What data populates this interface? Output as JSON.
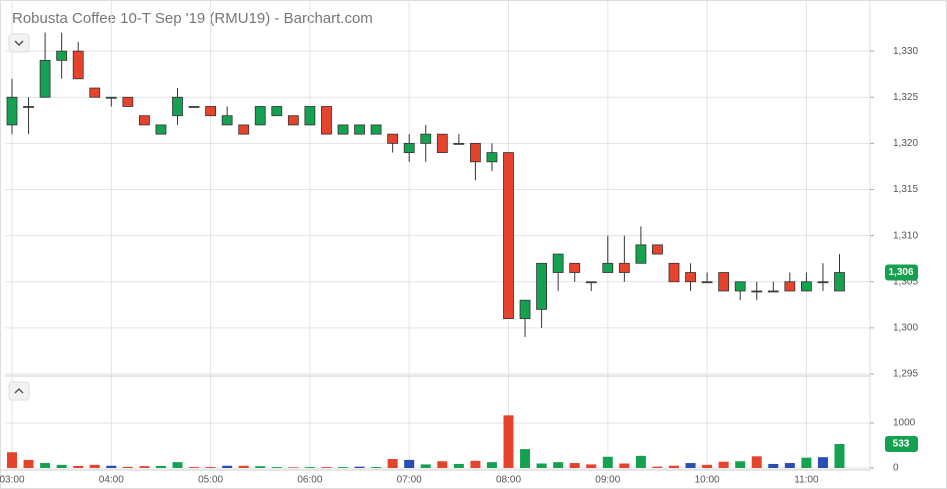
{
  "chart_data": [
    {
      "type": "candlestick",
      "title": "Robusta Coffee 10-T Sep '19 (RMU19) - Barchart.com",
      "open": [
        1322,
        1324,
        1325,
        1329,
        1330,
        1326,
        1325,
        1325,
        1323,
        1321,
        1323,
        1324,
        1324,
        1322,
        1322,
        1322,
        1323,
        1323,
        1322,
        1324,
        1321,
        1321,
        1321,
        1321,
        1319,
        1320,
        1321,
        1320,
        1320,
        1318,
        1319,
        1301,
        1302,
        1306,
        1307,
        1305,
        1306,
        1307,
        1307,
        1309,
        1307,
        1306,
        1305,
        1306,
        1304,
        1304,
        1304,
        1305,
        1304,
        1305,
        1304
      ],
      "high": [
        1327,
        1325,
        1332,
        1332,
        1331,
        1326,
        1325,
        1325,
        1323,
        1322,
        1326,
        1324,
        1324,
        1324,
        1322,
        1324,
        1324,
        1323,
        1324,
        1324,
        1322,
        1322,
        1322,
        1321,
        1321,
        1322,
        1321,
        1321,
        1320,
        1320,
        1319,
        1303,
        1307,
        1308,
        1307,
        1305,
        1310,
        1310,
        1311,
        1309,
        1307,
        1307,
        1306,
        1306,
        1305,
        1305,
        1305,
        1306,
        1306,
        1307,
        1308
      ],
      "low": [
        1321,
        1321,
        1325,
        1327,
        1327,
        1325,
        1324,
        1324,
        1322,
        1321,
        1322,
        1324,
        1323,
        1322,
        1321,
        1322,
        1323,
        1322,
        1322,
        1321,
        1321,
        1321,
        1321,
        1319,
        1318,
        1318,
        1319,
        1320,
        1316,
        1317,
        1301,
        1299,
        1300,
        1304,
        1305,
        1304,
        1306,
        1305,
        1307,
        1308,
        1305,
        1304,
        1305,
        1304,
        1303,
        1303,
        1304,
        1304,
        1304,
        1304,
        1304
      ],
      "close": [
        1325,
        1324,
        1329,
        1330,
        1327,
        1325,
        1325,
        1324,
        1322,
        1322,
        1325,
        1324,
        1323,
        1323,
        1321,
        1324,
        1324,
        1322,
        1324,
        1321,
        1322,
        1322,
        1322,
        1320,
        1320,
        1321,
        1319,
        1320,
        1318,
        1319,
        1301,
        1303,
        1307,
        1308,
        1306,
        1305,
        1307,
        1306,
        1309,
        1308,
        1305,
        1305,
        1305,
        1304,
        1305,
        1304,
        1304,
        1304,
        1305,
        1305,
        1306
      ],
      "up_color": "#16a150",
      "down_color": "#e5432b",
      "current": {
        "value": 1306,
        "label": "1,306"
      },
      "ylim": [
        1295,
        1335
      ],
      "yticks": [
        {
          "value": 1295,
          "label": "1,295"
        },
        {
          "value": 1300,
          "label": "1,300"
        },
        {
          "value": 1305,
          "label": "1,305"
        },
        {
          "value": 1310,
          "label": "1,310"
        },
        {
          "value": 1315,
          "label": "1,315"
        },
        {
          "value": 1320,
          "label": "1,320"
        },
        {
          "value": 1325,
          "label": "1,325"
        },
        {
          "value": 1330,
          "label": "1,330"
        }
      ],
      "grid": true
    },
    {
      "type": "bar",
      "categories": [
        "03:00",
        null,
        null,
        null,
        null,
        null,
        "04:00",
        null,
        null,
        null,
        null,
        null,
        "05:00",
        null,
        null,
        null,
        null,
        null,
        "06:00",
        null,
        null,
        null,
        null,
        null,
        "07:00",
        null,
        null,
        null,
        null,
        null,
        "08:00",
        null,
        null,
        null,
        null,
        null,
        "09:00",
        null,
        null,
        null,
        null,
        null,
        "10:00",
        null,
        null,
        null,
        null,
        null,
        "11:00",
        null,
        null
      ],
      "values": [
        350,
        180,
        110,
        70,
        45,
        70,
        50,
        25,
        40,
        45,
        130,
        20,
        20,
        50,
        50,
        40,
        20,
        15,
        20,
        20,
        20,
        30,
        20,
        200,
        180,
        80,
        150,
        90,
        160,
        130,
        1170,
        420,
        100,
        130,
        110,
        80,
        250,
        100,
        270,
        30,
        50,
        110,
        70,
        140,
        150,
        260,
        90,
        110,
        230,
        240,
        533
      ],
      "colors": [
        "#e5432b",
        "#e5432b",
        "#16a150",
        "#16a150",
        "#e5432b",
        "#e5432b",
        "#2a4db5",
        "#e5432b",
        "#e5432b",
        "#16a150",
        "#16a150",
        "#e5432b",
        "#e5432b",
        "#2a4db5",
        "#e5432b",
        "#16a150",
        "#16a150",
        "#e5432b",
        "#16a150",
        "#e5432b",
        "#16a150",
        "#2a4db5",
        "#16a150",
        "#e5432b",
        "#2a4db5",
        "#16a150",
        "#e5432b",
        "#16a150",
        "#e5432b",
        "#16a150",
        "#e5432b",
        "#16a150",
        "#16a150",
        "#16a150",
        "#e5432b",
        "#e5432b",
        "#16a150",
        "#e5432b",
        "#16a150",
        "#e5432b",
        "#e5432b",
        "#2a4db5",
        "#e5432b",
        "#e5432b",
        "#16a150",
        "#e5432b",
        "#2a4db5",
        "#2a4db5",
        "#16a150",
        "#2a4db5",
        "#16a150"
      ],
      "ylim": [
        0,
        2000
      ],
      "yticks": [
        0,
        1000
      ],
      "grid": true
    }
  ]
}
